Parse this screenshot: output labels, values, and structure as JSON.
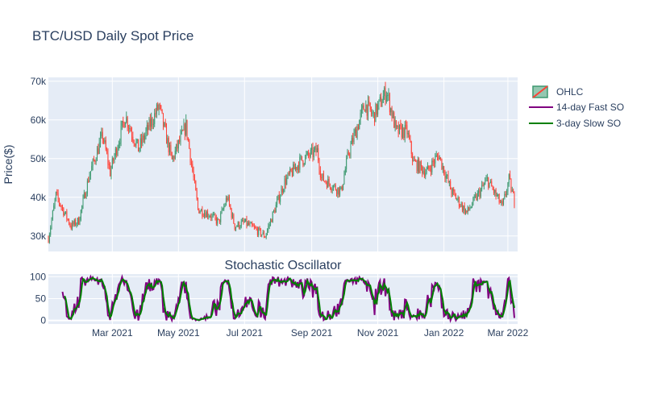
{
  "chart_data": [
    {
      "type": "candlestick",
      "title": "BTC/USD Daily Spot Price",
      "ylabel": "Price($)",
      "x_range": [
        "2021-01-01",
        "2022-03-10"
      ],
      "ylim": [
        26000,
        71000
      ],
      "yticks": [
        30000,
        40000,
        50000,
        60000,
        70000
      ],
      "ytick_labels": [
        "30k",
        "40k",
        "50k",
        "60k",
        "70k"
      ],
      "xticks": [
        "2021-03-01",
        "2021-05-01",
        "2021-07-01",
        "2021-09-01",
        "2021-11-01",
        "2022-01-01",
        "2022-03-01"
      ],
      "xtick_labels": [
        "Mar 2021",
        "May 2021",
        "Jul 2021",
        "Sep 2021",
        "Nov 2021",
        "Jan 2022",
        "Mar 2022"
      ],
      "grid": true,
      "legend": "top-right",
      "increasing_color": "#3d9970",
      "decreasing_color": "#ff4136",
      "series": [
        {
          "name": "OHLC",
          "close_anchors": [
            [
              "2021-01-01",
              29400
            ],
            [
              "2021-01-08",
              40500
            ],
            [
              "2021-01-15",
              36500
            ],
            [
              "2021-01-22",
              32500
            ],
            [
              "2021-01-29",
              34000
            ],
            [
              "2021-02-08",
              46000
            ],
            [
              "2021-02-20",
              56000
            ],
            [
              "2021-02-27",
              46500
            ],
            [
              "2021-03-13",
              61000
            ],
            [
              "2021-03-25",
              52500
            ],
            [
              "2021-04-13",
              63500
            ],
            [
              "2021-04-25",
              49500
            ],
            [
              "2021-05-08",
              58500
            ],
            [
              "2021-05-19",
              37000
            ],
            [
              "2021-05-30",
              35500
            ],
            [
              "2021-06-07",
              33500
            ],
            [
              "2021-06-15",
              40000
            ],
            [
              "2021-06-22",
              32500
            ],
            [
              "2021-07-01",
              33500
            ],
            [
              "2021-07-20",
              30000
            ],
            [
              "2021-08-07",
              44000
            ],
            [
              "2021-08-22",
              49500
            ],
            [
              "2021-09-06",
              52000
            ],
            [
              "2021-09-10",
              45000
            ],
            [
              "2021-09-28",
              41500
            ],
            [
              "2021-10-05",
              51500
            ],
            [
              "2021-10-20",
              64000
            ],
            [
              "2021-10-28",
              61000
            ],
            [
              "2021-11-09",
              67500
            ],
            [
              "2021-11-18",
              57000
            ],
            [
              "2021-11-28",
              57000
            ],
            [
              "2021-12-04",
              49000
            ],
            [
              "2021-12-16",
              46500
            ],
            [
              "2021-12-27",
              51000
            ],
            [
              "2022-01-08",
              41500
            ],
            [
              "2022-01-22",
              36000
            ],
            [
              "2022-02-10",
              44500
            ],
            [
              "2022-02-24",
              37500
            ],
            [
              "2022-03-02",
              44500
            ],
            [
              "2022-03-07",
              39000
            ]
          ]
        }
      ]
    },
    {
      "type": "line",
      "title": "Stochastic Oscillator",
      "ylim": [
        -8,
        106
      ],
      "yticks": [
        0,
        50,
        100
      ],
      "ytick_labels": [
        "0",
        "50",
        "100"
      ],
      "x_range": [
        "2021-01-01",
        "2022-03-10"
      ],
      "xticks": [
        "2021-03-01",
        "2021-05-01",
        "2021-07-01",
        "2021-09-01",
        "2021-11-01",
        "2022-01-01",
        "2022-03-01"
      ],
      "xtick_labels": [
        "Mar 2021",
        "May 2021",
        "Jul 2021",
        "Sep 2021",
        "Nov 2021",
        "Jan 2022",
        "Mar 2022"
      ],
      "grid": true,
      "series": [
        {
          "name": "14-day Fast SO",
          "color": "#800080",
          "window": 14
        },
        {
          "name": "3-day Slow SO",
          "color": "#008000",
          "window": 3
        }
      ]
    }
  ],
  "legend_items": [
    "OHLC",
    "14-day Fast SO",
    "3-day Slow SO"
  ]
}
